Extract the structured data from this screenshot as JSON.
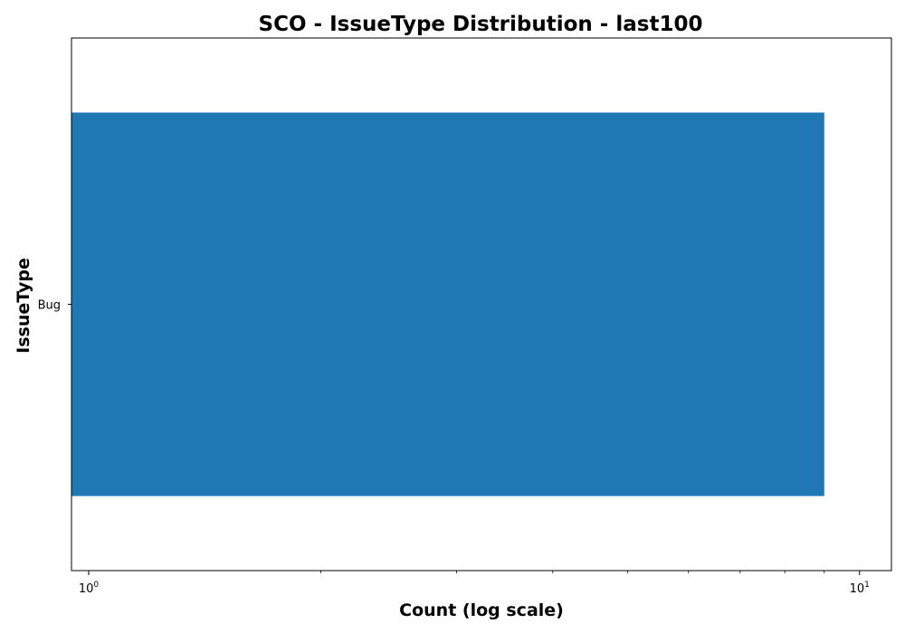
{
  "chart_data": {
    "type": "bar",
    "orientation": "horizontal",
    "title": "SCO - IssueType Distribution - last100",
    "xlabel": "Count (log scale)",
    "ylabel": "IssueType",
    "x_scale": "log",
    "xlim": [
      0.95,
      11
    ],
    "categories": [
      "Bug"
    ],
    "values": [
      9
    ],
    "x_ticks": [
      {
        "base": "10",
        "exp": "0",
        "value": 1
      },
      {
        "base": "10",
        "exp": "1",
        "value": 10
      }
    ],
    "grid": false,
    "legend": "none",
    "colors": {
      "bar": "#1f77b4",
      "axes": "#000000",
      "background": "#ffffff"
    }
  }
}
